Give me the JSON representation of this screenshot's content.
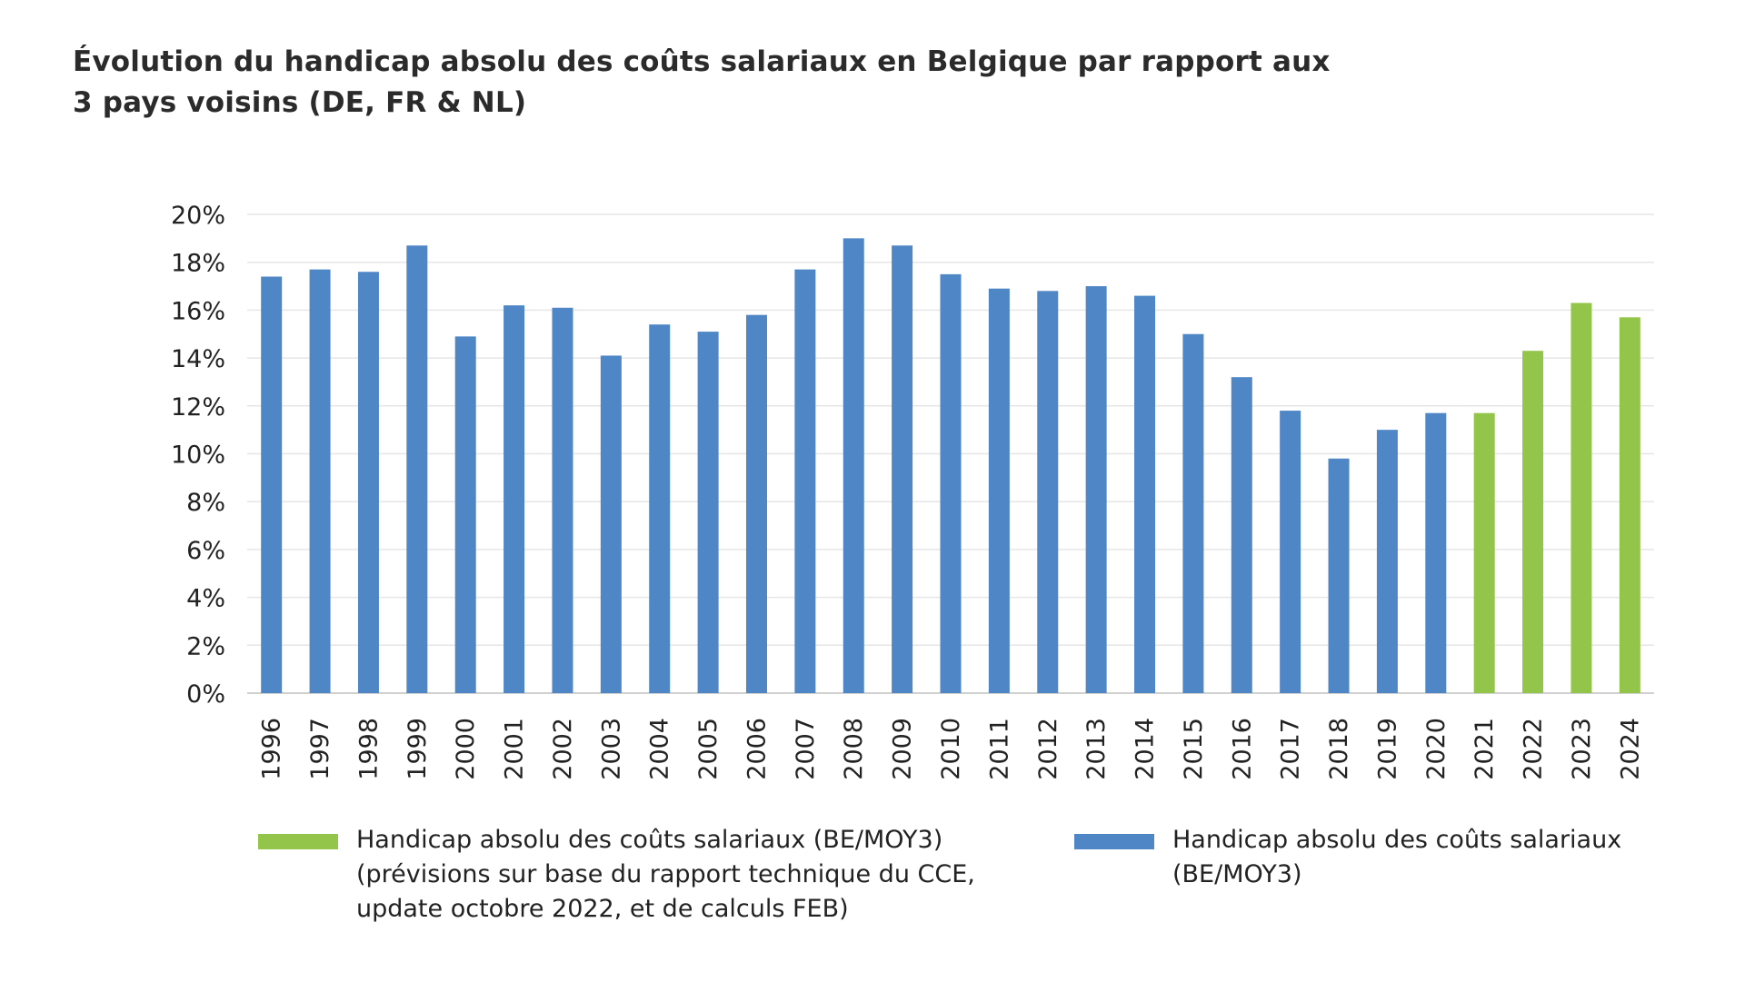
{
  "title": {
    "line1": "Évolution du handicap absolu des coûts salariaux en Belgique par rapport aux",
    "line2": "3 pays voisins (DE, FR & NL)"
  },
  "colors": {
    "actual": "#4F86C6",
    "forecast": "#93C54B",
    "grid": "#E6E6E6",
    "axis": "#D0D0D0",
    "text": "#222222"
  },
  "chart_data": {
    "type": "bar",
    "title": "Évolution du handicap absolu des coûts salariaux en Belgique par rapport aux 3 pays voisins (DE, FR & NL)",
    "xlabel": "",
    "ylabel": "",
    "ylim": [
      0,
      20
    ],
    "y_ticks": [
      "0%",
      "2%",
      "4%",
      "6%",
      "8%",
      "10%",
      "12%",
      "14%",
      "16%",
      "18%",
      "20%"
    ],
    "y_tick_values": [
      0,
      2,
      4,
      6,
      8,
      10,
      12,
      14,
      16,
      18,
      20
    ],
    "grid": true,
    "legend_position": "bottom",
    "categories": [
      "1996",
      "1997",
      "1998",
      "1999",
      "2000",
      "2001",
      "2002",
      "2003",
      "2004",
      "2005",
      "2006",
      "2007",
      "2008",
      "2009",
      "2010",
      "2011",
      "2012",
      "2013",
      "2014",
      "2015",
      "2016",
      "2017",
      "2018",
      "2019",
      "2020",
      "2021",
      "2022",
      "2023",
      "2024"
    ],
    "values": [
      17.4,
      17.7,
      17.6,
      18.7,
      14.9,
      16.2,
      16.1,
      14.1,
      15.4,
      15.1,
      15.8,
      17.7,
      19.0,
      18.7,
      17.5,
      16.9,
      16.8,
      17.0,
      16.6,
      15.0,
      13.2,
      11.8,
      9.8,
      11.0,
      11.7,
      11.7,
      14.3,
      16.3,
      15.7
    ],
    "forecast": [
      false,
      false,
      false,
      false,
      false,
      false,
      false,
      false,
      false,
      false,
      false,
      false,
      false,
      false,
      false,
      false,
      false,
      false,
      false,
      false,
      false,
      false,
      false,
      false,
      false,
      true,
      true,
      true,
      true
    ],
    "legend": [
      {
        "series": "forecast",
        "lines": [
          "Handicap absolu des coûts salariaux (BE/MOY3)",
          "(prévisions sur base du rapport technique du CCE,",
          "update octobre 2022, et de calculs FEB)"
        ]
      },
      {
        "series": "actual",
        "lines": [
          "Handicap absolu des coûts salariaux",
          "(BE/MOY3)"
        ]
      }
    ]
  }
}
